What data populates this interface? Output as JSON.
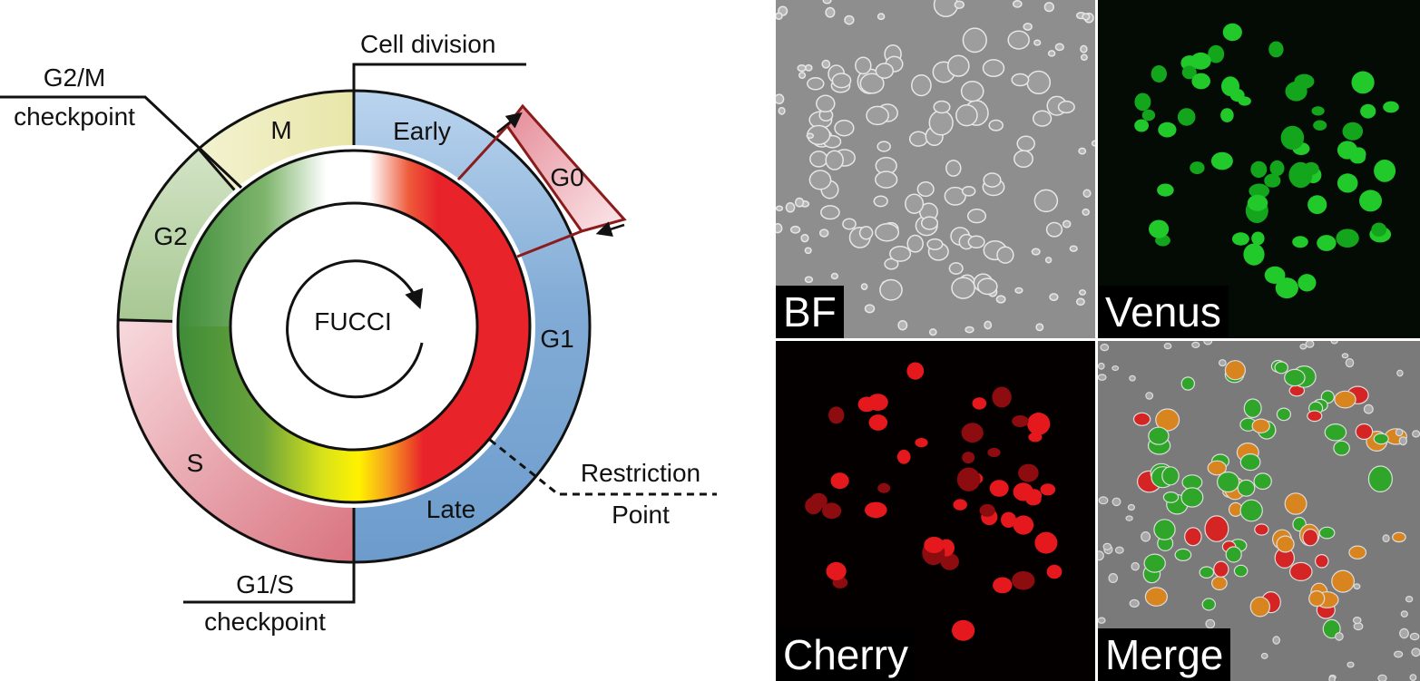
{
  "diagram": {
    "center_label": "FUCCI",
    "phases": {
      "m": "M",
      "g2": "G2",
      "s": "S",
      "g1": "G1",
      "g0": "G0",
      "early": "Early",
      "late": "Late"
    },
    "annotations": {
      "cell_division": "Cell division",
      "g2m_line1": "G2/M",
      "g2m_line2": "checkpoint",
      "g1s_line1": "G1/S",
      "g1s_line2": "checkpoint",
      "restriction_line1": "Restriction",
      "restriction_line2": "Point"
    },
    "colors": {
      "m": "#ecebb4",
      "g2": "#b7d3a5",
      "s": "#f0b7be",
      "g1": "#7fa9d4",
      "g0": "#e9aab2",
      "green": "#3a8a3a",
      "red": "#e8232a",
      "yellow": "#ffee00"
    }
  },
  "panels": [
    {
      "id": "bf",
      "label": "BF"
    },
    {
      "id": "venus",
      "label": "Venus"
    },
    {
      "id": "cherry",
      "label": "Cherry"
    },
    {
      "id": "merge",
      "label": "Merge"
    }
  ]
}
